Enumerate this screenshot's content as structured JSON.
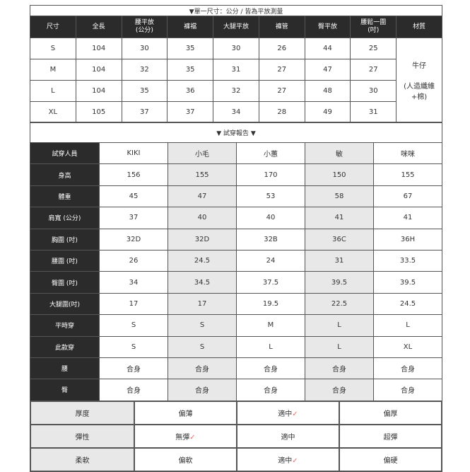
{
  "size_table": {
    "title": "▼單一尺寸：公分 / 皆為平放測量",
    "headers": [
      "尺寸",
      "全長",
      "腰平放\n(公分)",
      "褲襠",
      "大腿平放",
      "褲管",
      "臀平放",
      "腰鬆一圍\n(吋)",
      "材質"
    ],
    "rows": [
      [
        "S",
        "104",
        "30",
        "35",
        "30",
        "26",
        "44",
        "25"
      ],
      [
        "M",
        "104",
        "32",
        "35",
        "31",
        "27",
        "47",
        "27"
      ],
      [
        "L",
        "104",
        "35",
        "36",
        "32",
        "27",
        "48",
        "30"
      ],
      [
        "XL",
        "105",
        "37",
        "37",
        "34",
        "28",
        "49",
        "31"
      ]
    ],
    "material": "牛仔",
    "material_detail": "(人造纖維+棉)"
  },
  "fit_report": {
    "title": "▼ 試穿報告 ▼",
    "rows": [
      [
        "試穿人員",
        "KIKI",
        "小毛",
        "小蕙",
        "敏",
        "咪咪"
      ],
      [
        "身高",
        "156",
        "155",
        "170",
        "150",
        "155"
      ],
      [
        "體重",
        "45",
        "47",
        "53",
        "58",
        "67"
      ],
      [
        "肩寬 (公分)",
        "37",
        "40",
        "40",
        "41",
        "41"
      ],
      [
        "胸圍 (吋)",
        "32D",
        "32D",
        "32B",
        "36C",
        "36H"
      ],
      [
        "腰圍 (吋)",
        "26",
        "24.5",
        "24",
        "31",
        "33.5"
      ],
      [
        "臀圍 (吋)",
        "34",
        "34.5",
        "37.5",
        "39.5",
        "39.5"
      ],
      [
        "大腿圍(吋)",
        "17",
        "17",
        "19.5",
        "22.5",
        "24.5"
      ],
      [
        "平時穿",
        "S",
        "S",
        "M",
        "L",
        "L"
      ],
      [
        "此款穿",
        "S",
        "S",
        "L",
        "L",
        "XL"
      ],
      [
        "腰",
        "合身",
        "合身",
        "合身",
        "合身",
        "合身"
      ],
      [
        "臀",
        "合身",
        "合身",
        "合身",
        "合身",
        "合身"
      ]
    ]
  },
  "fabric": {
    "check": "✓",
    "check_color": "#f06a6a",
    "rows": [
      {
        "label": "厚度",
        "options": [
          "偏薄",
          "適中",
          "偏厚"
        ],
        "selected": 1
      },
      {
        "label": "彈性",
        "options": [
          "無彈",
          "適中",
          "超彈"
        ],
        "selected": 0
      },
      {
        "label": "柔軟",
        "options": [
          "偏軟",
          "適中",
          "偏硬"
        ],
        "selected": 1
      }
    ]
  }
}
